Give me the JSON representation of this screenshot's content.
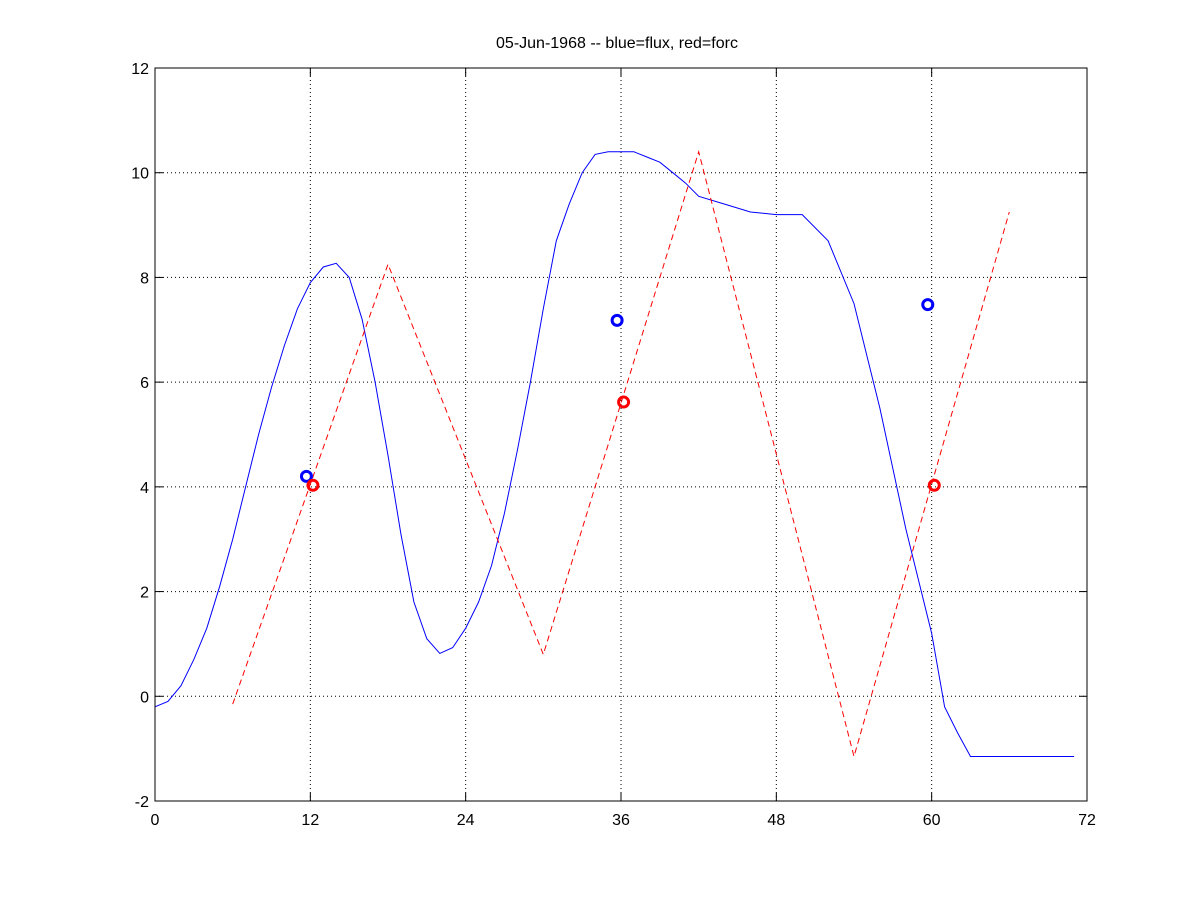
{
  "chart_data": {
    "type": "line",
    "title": "05-Jun-1968 -- blue=flux, red=forc",
    "xlabel": "",
    "ylabel": "",
    "xlim": [
      0,
      72
    ],
    "ylim": [
      -2,
      12
    ],
    "xticks": [
      0,
      12,
      24,
      36,
      48,
      60,
      72
    ],
    "yticks": [
      -2,
      0,
      2,
      4,
      6,
      8,
      10,
      12
    ],
    "grid": true,
    "series": [
      {
        "color": "#0000ff",
        "style": "solid",
        "x": [
          0,
          1,
          2,
          3,
          4,
          5,
          6,
          7,
          8,
          9,
          10,
          11,
          12,
          13,
          14,
          15,
          16,
          17,
          18,
          19,
          20,
          21,
          22,
          23,
          24,
          25,
          26,
          27,
          28,
          29,
          30,
          31,
          32,
          33,
          34,
          35,
          36,
          37,
          38,
          39,
          40,
          41,
          42,
          44,
          46,
          48,
          50,
          52,
          54,
          56,
          58,
          60,
          61,
          62,
          63,
          64,
          65,
          66,
          67,
          68,
          69,
          70,
          71
        ],
        "y": [
          -0.2,
          -0.1,
          0.2,
          0.7,
          1.3,
          2.1,
          3.0,
          4.0,
          5.0,
          5.9,
          6.7,
          7.4,
          7.9,
          8.2,
          8.27,
          8.0,
          7.2,
          6.0,
          4.6,
          3.1,
          1.8,
          1.1,
          0.82,
          0.93,
          1.3,
          1.8,
          2.5,
          3.5,
          4.7,
          6.0,
          7.4,
          8.7,
          9.4,
          10.0,
          10.35,
          10.4,
          10.4,
          10.4,
          10.3,
          10.2,
          10.0,
          9.8,
          9.55,
          9.4,
          9.25,
          9.2,
          9.2,
          8.7,
          7.5,
          5.5,
          3.2,
          1.2,
          -0.2,
          -0.7,
          -1.15,
          -1.15,
          -1.15,
          -1.15,
          -1.15,
          -1.15,
          -1.15,
          -1.15,
          -1.15
        ]
      },
      {
        "color": "#ff0000",
        "style": "dashed",
        "x": [
          6,
          18,
          30,
          42,
          54,
          66
        ],
        "y": [
          -0.15,
          8.25,
          0.8,
          10.4,
          -1.15,
          9.25
        ]
      }
    ],
    "markers": [
      {
        "color": "#0000ff",
        "x": 11.7,
        "y": 4.2
      },
      {
        "color": "#ff0000",
        "x": 12.2,
        "y": 4.03
      },
      {
        "color": "#0000ff",
        "x": 35.7,
        "y": 7.18
      },
      {
        "color": "#ff0000",
        "x": 36.2,
        "y": 5.62
      },
      {
        "color": "#0000ff",
        "x": 59.7,
        "y": 7.48
      },
      {
        "color": "#ff0000",
        "x": 60.2,
        "y": 4.03
      }
    ]
  }
}
